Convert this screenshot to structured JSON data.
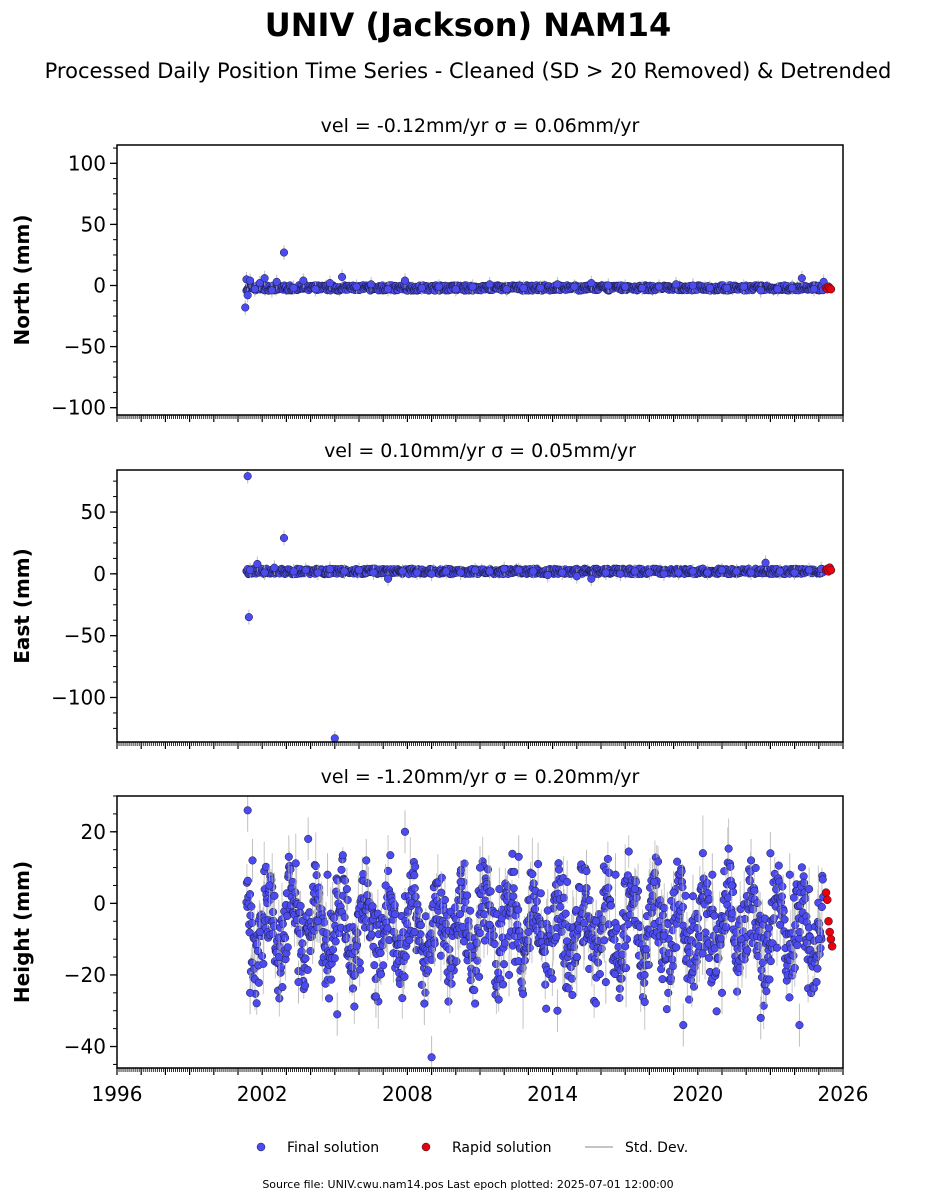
{
  "title": "UNIV (Jackson) NAM14",
  "subtitle": "Processed Daily Position Time Series - Cleaned (SD > 20 Removed) & Detrended",
  "footer": "Source file: UNIV.cwu.nam14.pos  Last epoch plotted: 2025-07-01 12:00:00",
  "legend": {
    "final": "Final solution",
    "rapid": "Rapid solution",
    "std": "Std. Dev."
  },
  "colors": {
    "final": "#4b4bef",
    "rapid": "#e8000b",
    "std": "#b0b0b0",
    "edge": "#1a1a3a"
  },
  "chart_data": [
    {
      "type": "scatter",
      "panel_title": "vel = -0.12mm/yr   σ = 0.06mm/yr",
      "ylabel": "North (mm)",
      "ylim": [
        -106,
        115
      ],
      "yticks": [
        100,
        50,
        0,
        -50,
        -100
      ],
      "xlim": [
        1996,
        2026
      ],
      "xticks": [
        1996,
        2002,
        2008,
        2014,
        2020,
        2026
      ],
      "series": [
        {
          "name": "Final solution",
          "x": [
            2001.3,
            2001.35,
            2001.4,
            2001.5,
            2001.7,
            2001.9,
            2002.1,
            2002.4,
            2002.6,
            2002.9,
            2003.3,
            2003.7,
            2004.2,
            2004.8,
            2005.3,
            2005.9,
            2006.5,
            2007.2,
            2007.9,
            2008.6,
            2009.3,
            2010.0,
            2010.7,
            2011.4,
            2012.1,
            2012.8,
            2013.5,
            2014.2,
            2014.9,
            2015.6,
            2016.3,
            2017.0,
            2017.7,
            2018.4,
            2019.1,
            2019.8,
            2020.5,
            2021.2,
            2021.9,
            2022.6,
            2023.3,
            2023.9,
            2024.3,
            2024.8,
            2025.2
          ],
          "y": [
            -18,
            5,
            -8,
            4,
            -3,
            2,
            6,
            -4,
            3,
            27,
            -2,
            4,
            -3,
            2,
            7,
            -1,
            1,
            -3,
            4,
            -2,
            -1,
            -3,
            -1,
            1,
            -3,
            -2,
            -2,
            1,
            -1,
            2,
            0,
            -1,
            -2,
            -1,
            1,
            0,
            -2,
            -2,
            -1,
            -4,
            -3,
            -2,
            6,
            -3,
            3
          ]
        },
        {
          "name": "Rapid solution",
          "x": [
            2025.3,
            2025.35,
            2025.4,
            2025.45,
            2025.5
          ],
          "y": [
            -2,
            -3,
            -1,
            -2,
            -3
          ]
        }
      ]
    },
    {
      "type": "scatter",
      "panel_title": "vel = 0.10mm/yr   σ = 0.05mm/yr",
      "ylabel": "East (mm)",
      "ylim": [
        -136,
        84
      ],
      "yticks": [
        50,
        0,
        -50,
        -100
      ],
      "xlim": [
        1996,
        2026
      ],
      "xticks": [
        1996,
        2002,
        2008,
        2014,
        2020,
        2026
      ],
      "series": [
        {
          "name": "Final solution",
          "x": [
            2001.4,
            2001.45,
            2001.5,
            2001.8,
            2002.1,
            2002.5,
            2002.9,
            2003.3,
            2003.8,
            2004.3,
            2004.8,
            2005.0,
            2005.4,
            2006.0,
            2006.6,
            2007.2,
            2007.8,
            2008.4,
            2009.0,
            2009.6,
            2010.2,
            2010.8,
            2011.4,
            2012.0,
            2012.6,
            2013.2,
            2013.8,
            2014.4,
            2015.0,
            2015.6,
            2016.2,
            2016.8,
            2017.4,
            2018.0,
            2018.6,
            2019.2,
            2019.8,
            2020.4,
            2021.0,
            2021.6,
            2022.2,
            2022.8,
            2023.4,
            2024.0,
            2024.6,
            2025.1
          ],
          "y": [
            79,
            -35,
            3,
            8,
            1,
            5,
            29,
            2,
            3,
            1,
            4,
            -133,
            2,
            3,
            1,
            -4,
            2,
            1,
            0,
            2,
            1,
            3,
            2,
            4,
            3,
            2,
            -1,
            1,
            -2,
            -4,
            1,
            0,
            2,
            1,
            0,
            1,
            2,
            1,
            3,
            2,
            1,
            9,
            2,
            1,
            3,
            4
          ]
        },
        {
          "name": "Rapid solution",
          "x": [
            2025.3,
            2025.35,
            2025.4,
            2025.45,
            2025.5
          ],
          "y": [
            3,
            4,
            2,
            5,
            3
          ]
        }
      ]
    },
    {
      "type": "scatter",
      "panel_title": "vel = -1.20mm/yr   σ = 0.20mm/yr",
      "ylabel": "Height (mm)",
      "ylim": [
        -46,
        30
      ],
      "yticks": [
        20,
        0,
        -20,
        -40
      ],
      "xlim": [
        1996,
        2026
      ],
      "xticks": [
        1996,
        2002,
        2008,
        2014,
        2020,
        2026
      ],
      "xticklabels": [
        "1996",
        "2002",
        "2008",
        "2014",
        "2020",
        "2026"
      ],
      "series": [
        {
          "name": "Final solution",
          "x": [
            2001.4,
            2001.5,
            2001.6,
            2001.9,
            2002.3,
            2002.7,
            2003.1,
            2003.5,
            2003.9,
            2004.3,
            2004.7,
            2005.1,
            2005.5,
            2005.9,
            2006.3,
            2006.7,
            2007.1,
            2007.5,
            2007.9,
            2008.3,
            2008.7,
            2009.0,
            2009.4,
            2009.8,
            2010.2,
            2010.6,
            2011.0,
            2011.4,
            2011.8,
            2012.2,
            2012.6,
            2013.0,
            2013.4,
            2013.8,
            2014.2,
            2014.6,
            2015.0,
            2015.4,
            2015.8,
            2016.2,
            2016.6,
            2017.0,
            2017.4,
            2017.8,
            2018.2,
            2018.6,
            2019.0,
            2019.4,
            2019.8,
            2020.2,
            2020.6,
            2021.0,
            2021.4,
            2021.8,
            2022.2,
            2022.6,
            2023.0,
            2023.4,
            2023.8,
            2024.2,
            2024.6,
            2025.0
          ],
          "y": [
            26,
            -25,
            12,
            -8,
            5,
            -15,
            13,
            -22,
            18,
            -5,
            8,
            -31,
            4,
            -12,
            12,
            -26,
            5,
            -3,
            20,
            -8,
            -28,
            -43,
            3,
            -18,
            6,
            -12,
            10,
            -6,
            4,
            -20,
            13,
            -8,
            11,
            -2,
            -30,
            6,
            -15,
            9,
            -5,
            -22,
            8,
            -12,
            4,
            -20,
            6,
            -9,
            3,
            -34,
            2,
            -14,
            8,
            -25,
            5,
            -10,
            12,
            -32,
            14,
            -6,
            8,
            -34,
            4,
            -10
          ]
        },
        {
          "name": "Rapid solution",
          "x": [
            2025.3,
            2025.35,
            2025.4,
            2025.45,
            2025.5,
            2025.55
          ],
          "y": [
            3,
            1,
            -5,
            -8,
            -10,
            -12
          ]
        }
      ]
    }
  ]
}
